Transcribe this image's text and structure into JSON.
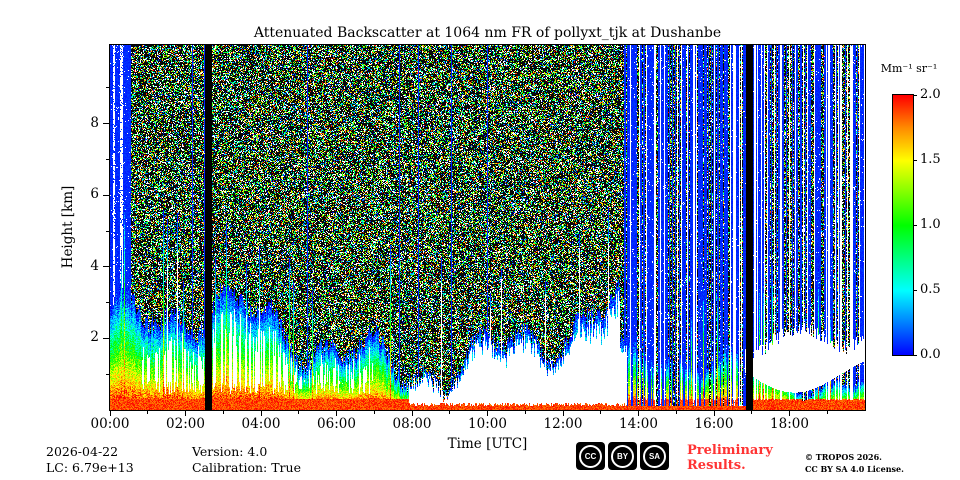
{
  "title": "Attenuated Backscatter at 1064 nm FR of pollyxt_tjk at Dushanbe",
  "axes": {
    "x": {
      "label": "Time [UTC]",
      "tick_hours": [
        0,
        2,
        4,
        6,
        8,
        10,
        12,
        14,
        16,
        18
      ],
      "tick_labels": [
        "00:00",
        "02:00",
        "04:00",
        "06:00",
        "08:00",
        "10:00",
        "12:00",
        "14:00",
        "16:00",
        "18:00"
      ],
      "minor_hours": [
        1,
        3,
        5,
        7,
        9,
        11,
        13,
        15,
        17,
        19
      ],
      "range_hours": [
        0,
        20
      ]
    },
    "y": {
      "label": "Height [km]",
      "tick_values": [
        2,
        4,
        6,
        8
      ],
      "minor_values": [
        1,
        3,
        5,
        7,
        9
      ],
      "range_km": [
        0,
        10.2
      ]
    }
  },
  "colorbar": {
    "label": "Mm⁻¹ sr⁻¹",
    "tick_labels": [
      "2.0",
      "1.5",
      "1.0",
      "0.5",
      "0.0"
    ],
    "tick_values": [
      2.0,
      1.5,
      1.0,
      0.5,
      0.0
    ],
    "range": [
      0,
      2
    ]
  },
  "footer": {
    "date": "2026-04-22",
    "lc": "LC: 6.79e+13",
    "version": "Version: 4.0",
    "calibration": "Calibration: True",
    "preliminary": "Preliminary Results.",
    "copyright": "© TROPOS 2026.",
    "license": "CC BY SA 4.0 License.",
    "cc_badges": [
      "CC",
      "BY",
      "SA"
    ]
  },
  "colors": {
    "accent_red": "#ff3333",
    "axis": "#000000",
    "background": "#ffffff"
  },
  "chart_data": {
    "type": "heatmap",
    "title": "Attenuated Backscatter at 1064 nm FR of pollyxt_tjk at Dushanbe",
    "xlabel": "Time [UTC]",
    "ylabel": "Height [km]",
    "x_range_hours": [
      0,
      20
    ],
    "x_tick_labels": [
      "00:00",
      "02:00",
      "04:00",
      "06:00",
      "08:00",
      "10:00",
      "12:00",
      "14:00",
      "16:00",
      "18:00"
    ],
    "y_range_km": [
      0,
      10.2
    ],
    "y_ticks_km": [
      2,
      4,
      6,
      8
    ],
    "value_label": "Mm⁻¹ sr⁻¹",
    "value_range": [
      0.0,
      2.0
    ],
    "colorbar_ticks": [
      0.0,
      0.5,
      1.0,
      1.5,
      2.0
    ],
    "colormap": "jet (blue-cyan-green-yellow-red)",
    "features": [
      "Strong near-surface aerosol layer (~1.5-2.0 Mm⁻¹ sr⁻¹, red/orange) below ~0.5 km persisting the whole day",
      "Aerosol plumes and cloud structures reaching 2-5 km between 00:00 and 08:00",
      "Optically thick clouds (saturated, white) mostly 08:00-13:30 below ~3 km",
      "Vertical black data gaps near 02:40 and 17:00",
      "Low-signal solid blue columns around 00:00-00:30, 14:00-16:30 and after 17:00 with white streaks",
      "Salt-and-pepper photon-noise speckle above the aerosol layer from 00:00 until ~14:00"
    ],
    "render": {
      "seed": 1234567,
      "t_hours": 20,
      "h_km": 10.2,
      "gap_times_h": [
        2.6,
        16.93
      ],
      "gap_halfwidth_h": 0.09,
      "speckle_dark_frac": 0.55,
      "speckle_white_frac": 0.12,
      "colormap_stops": [
        [
          0,
          0,
          0,
          255
        ],
        [
          0.25,
          0,
          255,
          255
        ],
        [
          0.5,
          0,
          255,
          0
        ],
        [
          0.75,
          255,
          255,
          0
        ],
        [
          0.875,
          255,
          140,
          0
        ],
        [
          1,
          255,
          0,
          0
        ]
      ]
    }
  }
}
